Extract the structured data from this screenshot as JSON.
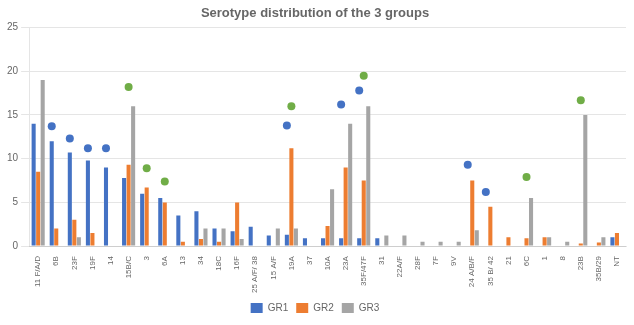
{
  "chart_data": {
    "type": "bar",
    "title": "Serotype distribution of the 3 groups",
    "categories": [
      "11 F/A/D",
      "6B",
      "23F",
      "19F",
      "14",
      "15B/C",
      "3",
      "6A",
      "13",
      "34",
      "18C",
      "16F",
      "25 A/F/ 38",
      "15 A/F",
      "19A",
      "37",
      "10A",
      "23A",
      "35F/47F",
      "31",
      "22A/F",
      "28F",
      "7F",
      "9V",
      "24 A/B/F",
      "35 B/ 42",
      "21",
      "6C",
      "1",
      "8",
      "23B",
      "35B/29",
      "NT"
    ],
    "series": [
      {
        "name": "GR1",
        "color": "#4472C4",
        "values": [
          14,
          12,
          10.7,
          9.8,
          9.0,
          7.8,
          6.0,
          5.5,
          3.5,
          4.0,
          2.0,
          1.7,
          2.2,
          1.2,
          1.3,
          0.9,
          0.9,
          0.9,
          0.9,
          0.9,
          0.0,
          0.0,
          0.0,
          0.0,
          0.0,
          0.0,
          0.0,
          0.0,
          0.0,
          0.0,
          0.0,
          0.0,
          1.0
        ]
      },
      {
        "name": "GR2",
        "color": "#ED7D31",
        "values": [
          8.5,
          2.0,
          3.0,
          1.5,
          0.0,
          9.3,
          6.7,
          5.0,
          0.5,
          0.8,
          0.5,
          5.0,
          0.0,
          0.0,
          11.2,
          0.0,
          2.3,
          9.0,
          7.5,
          0.0,
          0.0,
          0.0,
          0.0,
          0.0,
          7.5,
          4.5,
          1.0,
          0.9,
          1.0,
          0.0,
          0.3,
          0.4,
          1.5
        ]
      },
      {
        "name": "GR3",
        "color": "#A5A5A5",
        "values": [
          19,
          0,
          1,
          0,
          0,
          16,
          0,
          0,
          0,
          2,
          2,
          0.8,
          0,
          2,
          2,
          0,
          6.5,
          14,
          16,
          1.2,
          1.2,
          0.5,
          0.5,
          0.5,
          1.8,
          0,
          0,
          5.5,
          1,
          0.5,
          15,
          1,
          0
        ]
      },
      {
        "type": "scatter",
        "color": "#4472C4",
        "marker": "circle",
        "values": [
          null,
          13.7,
          12.3,
          11.2,
          11.2,
          null,
          null,
          null,
          null,
          null,
          null,
          null,
          null,
          null,
          13.8,
          null,
          null,
          16.2,
          17.8,
          null,
          null,
          null,
          null,
          null,
          9.3,
          6.2,
          null,
          null,
          null,
          null,
          null,
          null,
          null
        ]
      },
      {
        "type": "scatter",
        "color": "#70AD47",
        "marker": "circle",
        "values": [
          null,
          null,
          null,
          null,
          null,
          18.2,
          8.9,
          7.4,
          null,
          null,
          null,
          null,
          null,
          null,
          16.0,
          null,
          null,
          null,
          19.5,
          null,
          null,
          null,
          null,
          null,
          null,
          null,
          null,
          7.9,
          null,
          null,
          16.7,
          null,
          null
        ]
      }
    ],
    "ylim": [
      0,
      25
    ],
    "yticks": [
      0,
      5,
      10,
      15,
      20,
      25
    ],
    "grid": true,
    "legend": "bottom"
  }
}
